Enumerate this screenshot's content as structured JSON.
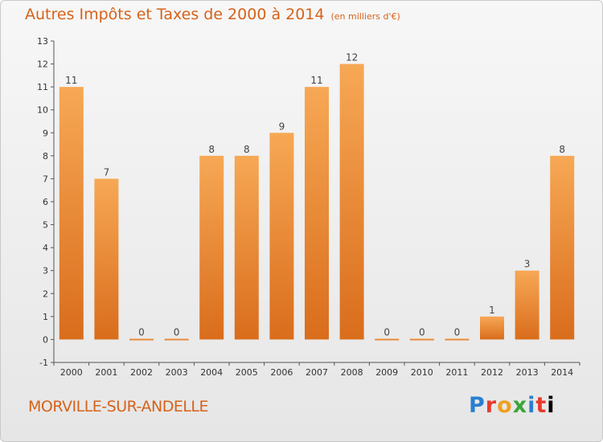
{
  "chart_data": {
    "type": "bar",
    "title": "Autres Impôts et Taxes de 2000 à 2014",
    "subtitle": "(en milliers d'€)",
    "categories": [
      "2000",
      "2001",
      "2002",
      "2003",
      "2004",
      "2005",
      "2006",
      "2007",
      "2008",
      "2009",
      "2010",
      "2011",
      "2012",
      "2013",
      "2014"
    ],
    "values": [
      11,
      7,
      0,
      0,
      8,
      8,
      9,
      11,
      12,
      0,
      0,
      0,
      1,
      3,
      8
    ],
    "value_labels": [
      "11",
      "7",
      "0",
      "0",
      "8",
      "8",
      "9",
      "11",
      "12",
      "0",
      "0",
      "0",
      "1",
      "3",
      "8"
    ],
    "y_ticks": [
      "-1",
      "0",
      "1",
      "2",
      "3",
      "4",
      "5",
      "6",
      "7",
      "8",
      "9",
      "10",
      "11",
      "12",
      "13"
    ],
    "ylim": [
      -1,
      13
    ],
    "xlabel": "",
    "ylabel": "",
    "grid": false,
    "bar_color_light": "#f7a855",
    "bar_color_dark": "#d96d1c"
  },
  "footer": {
    "commune": "MORVILLE-SUR-ANDELLE",
    "logo_letters": [
      "P",
      "r",
      "o",
      "x",
      "i",
      "t",
      "i"
    ]
  },
  "colors": {
    "accent": "#d6621a"
  }
}
